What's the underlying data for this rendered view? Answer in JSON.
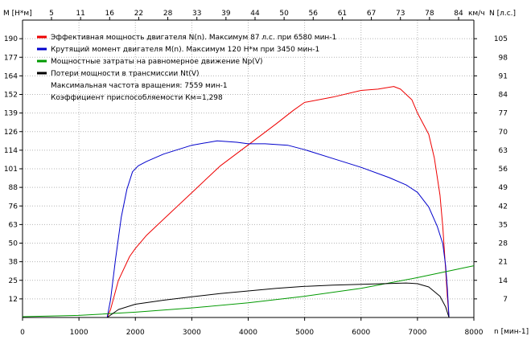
{
  "chart_data": {
    "type": "line",
    "axes": {
      "left_title": "M [Н*м]",
      "right_title": "N [л.с.]",
      "bottom_title": "n [мин-1]",
      "top_unit": "км/ч",
      "x_ticks": [
        "0",
        "1000",
        "2000",
        "3000",
        "4000",
        "5000",
        "6000",
        "7000",
        "8000"
      ],
      "top_ticks": [
        "5",
        "11",
        "16",
        "22",
        "28",
        "33",
        "39",
        "44",
        "50",
        "56",
        "61",
        "67",
        "73",
        "78",
        "84"
      ],
      "left_ticks": [
        "12",
        "25",
        "38",
        "50",
        "63",
        "76",
        "88",
        "101",
        "114",
        "126",
        "139",
        "152",
        "164",
        "177",
        "190"
      ],
      "right_ticks": [
        "7",
        "14",
        "21",
        "28",
        "35",
        "42",
        "49",
        "56",
        "63",
        "70",
        "77",
        "84",
        "91",
        "98",
        "105"
      ],
      "xlim": [
        0,
        8000
      ],
      "left_ylim": [
        0,
        202
      ],
      "right_ylim": [
        0,
        112
      ],
      "grid": true
    },
    "legend": [
      {
        "label": "Эффективная мощность двигателя N(n). Максимум 87 л.с. при 6580 мин-1",
        "color": "#ee0000"
      },
      {
        "label": "Крутящий момент двигателя M(n). Максимум 120 Н*м при 3450 мин-1",
        "color": "#0000cc"
      },
      {
        "label": "Мощностные затраты на равномерное движение Np(V)",
        "color": "#009900"
      },
      {
        "label": "Потери мощности в трансмиссии Nt(V)",
        "color": "#000000"
      }
    ],
    "notes": [
      "Максимальная частота вращения: 7559 мин-1",
      "Коэффициент приспособляемости Км=1,298"
    ],
    "series": [
      {
        "name": "Эффективная мощность двигателя N(n)",
        "axis": "right",
        "color": "#ee0000",
        "x": [
          1500,
          1560,
          1700,
          1900,
          2000,
          2200,
          2500,
          3000,
          3500,
          4000,
          4500,
          4800,
          5000,
          5500,
          6000,
          6300,
          6580,
          6700,
          6900,
          7000,
          7200,
          7300,
          7400,
          7450,
          7500,
          7530,
          7559
        ],
        "y": [
          0,
          3,
          14,
          23,
          26,
          31,
          37,
          47,
          57,
          65,
          73,
          78,
          81,
          83,
          85.5,
          86,
          87,
          86,
          82,
          77,
          69,
          60,
          46,
          34,
          18,
          8,
          0
        ]
      },
      {
        "name": "Крутящий момент двигателя M(n)",
        "axis": "left",
        "color": "#0000cc",
        "x": [
          1500,
          1560,
          1650,
          1750,
          1850,
          1950,
          2050,
          2200,
          2500,
          3000,
          3450,
          3800,
          4000,
          4300,
          4700,
          5000,
          5500,
          6000,
          6500,
          6800,
          7000,
          7200,
          7350,
          7450,
          7500,
          7530,
          7559
        ],
        "y": [
          0,
          12,
          40,
          68,
          87,
          99,
          103,
          106,
          111,
          117,
          120,
          119,
          118,
          118,
          117,
          114,
          108,
          102,
          95,
          90,
          85,
          75,
          62,
          50,
          35,
          20,
          0
        ]
      },
      {
        "name": "Мощностные затраты на равномерное движение Np(V)",
        "axis": "right",
        "color": "#009900",
        "x": [
          0,
          1000,
          2000,
          3000,
          4000,
          5000,
          6000,
          7000,
          8000
        ],
        "y": [
          0.3,
          0.8,
          2,
          3.6,
          5.5,
          8,
          11,
          15,
          19.5
        ]
      },
      {
        "name": "Потери мощности в трансмиссии Nt(V)",
        "axis": "right",
        "color": "#000000",
        "x": [
          1500,
          1700,
          2000,
          2500,
          3000,
          3500,
          4000,
          4500,
          5000,
          5500,
          6000,
          6500,
          6800,
          7000,
          7200,
          7400,
          7500,
          7559
        ],
        "y": [
          0,
          3,
          5,
          6.5,
          7.8,
          9,
          10,
          11,
          11.7,
          12.2,
          12.5,
          12.8,
          13,
          12.7,
          11.5,
          8,
          4,
          0
        ]
      }
    ]
  }
}
